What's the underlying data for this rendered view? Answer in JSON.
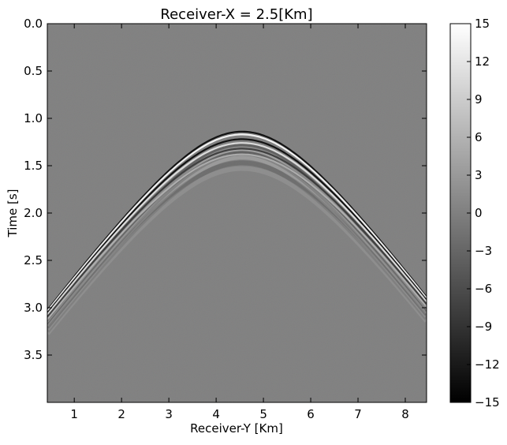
{
  "chart_data": {
    "type": "heatmap",
    "title": "Receiver-X = 2.5[Km]",
    "xlabel": "Receiver-Y [Km]",
    "ylabel": "Time [s]",
    "xlim": [
      0.43,
      8.45
    ],
    "ylim": [
      4.0,
      0.0
    ],
    "xticks": [
      1,
      2,
      3,
      4,
      5,
      6,
      7,
      8
    ],
    "xtick_labels": [
      "1",
      "2",
      "3",
      "4",
      "5",
      "6",
      "7",
      "8"
    ],
    "yticks": [
      0.0,
      0.5,
      1.0,
      1.5,
      2.0,
      2.5,
      3.0,
      3.5
    ],
    "ytick_labels": [
      "0.0",
      "0.5",
      "1.0",
      "1.5",
      "2.0",
      "2.5",
      "3.0",
      "3.5"
    ],
    "colormap": "gray",
    "background_value": 0,
    "colorbar": {
      "range": [
        -15,
        15
      ],
      "ticks": [
        15,
        12,
        9,
        6,
        3,
        0,
        -3,
        -6,
        -9,
        -12,
        -15
      ],
      "tick_labels": [
        "15",
        "12",
        "9",
        "6",
        "3",
        "0",
        "−3",
        "−6",
        "−9",
        "−12",
        "−15"
      ]
    },
    "events": [
      {
        "apex_x": 4.55,
        "apex_t": 1.14,
        "velocity": 1.47,
        "amplitude": -15
      },
      {
        "apex_x": 4.55,
        "apex_t": 1.17,
        "velocity": 1.47,
        "amplitude": 15
      },
      {
        "apex_x": 4.55,
        "apex_t": 1.22,
        "velocity": 1.47,
        "amplitude": -15
      },
      {
        "apex_x": 4.55,
        "apex_t": 1.26,
        "velocity": 1.47,
        "amplitude": 12
      },
      {
        "apex_x": 4.55,
        "apex_t": 1.32,
        "velocity": 1.47,
        "amplitude": -9
      },
      {
        "apex_x": 4.55,
        "apex_t": 1.38,
        "velocity": 1.47,
        "amplitude": 6
      }
    ]
  }
}
